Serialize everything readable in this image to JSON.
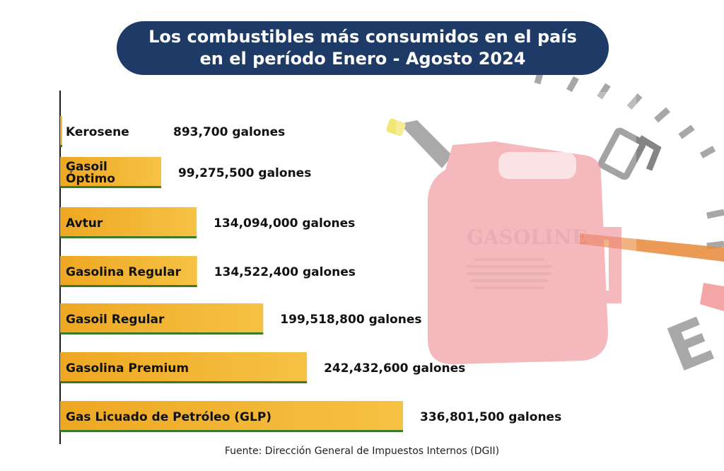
{
  "title": {
    "line1": "Los combustibles más consumidos en el país",
    "line2": "en el período Enero - Agosto 2024"
  },
  "source": "Fuente: Dirección General de Impuestos Internos (DGII)",
  "colors": {
    "title_bg": "#1d3b66",
    "bar_light": "#f6c244",
    "bar_dark": "#eea722",
    "bar_base": "#3a7a2a",
    "can": "#e8555f"
  },
  "decoration": {
    "can_text": "GASOLINE",
    "gauge_letter": "E",
    "icons": [
      "fuel-pump-icon",
      "gas-can-icon",
      "fuel-gauge-icon"
    ]
  },
  "chart_data": {
    "type": "bar",
    "orientation": "horizontal",
    "title": "Los combustibles más consumidos en el país en el período Enero - Agosto 2024",
    "unit": "galones",
    "categories": [
      "Kerosene",
      "Gasoil Óptimo",
      "Avtur",
      "Gasolina Regular",
      "Gasoil Regular",
      "Gasolina Premium",
      "Gas Licuado de Petróleo (GLP)"
    ],
    "category_lines": [
      [
        "Kerosene"
      ],
      [
        "Gasoil",
        "Óptimo"
      ],
      [
        "Avtur"
      ],
      [
        "Gasolina Regular"
      ],
      [
        "Gasoil Regular"
      ],
      [
        "Gasolina Premium"
      ],
      [
        "Gas Licuado de Petróleo (GLP)"
      ]
    ],
    "values": [
      893700,
      99275500,
      134094000,
      134522400,
      199518800,
      242432600,
      336801500
    ],
    "value_labels": [
      "893,700 galones",
      "99,275,500 galones",
      "134,094,000 galones",
      "134,522,400 galones",
      "199,518,800 galones",
      "242,432,600 galones",
      "336,801,500 galones"
    ],
    "grid": false
  }
}
